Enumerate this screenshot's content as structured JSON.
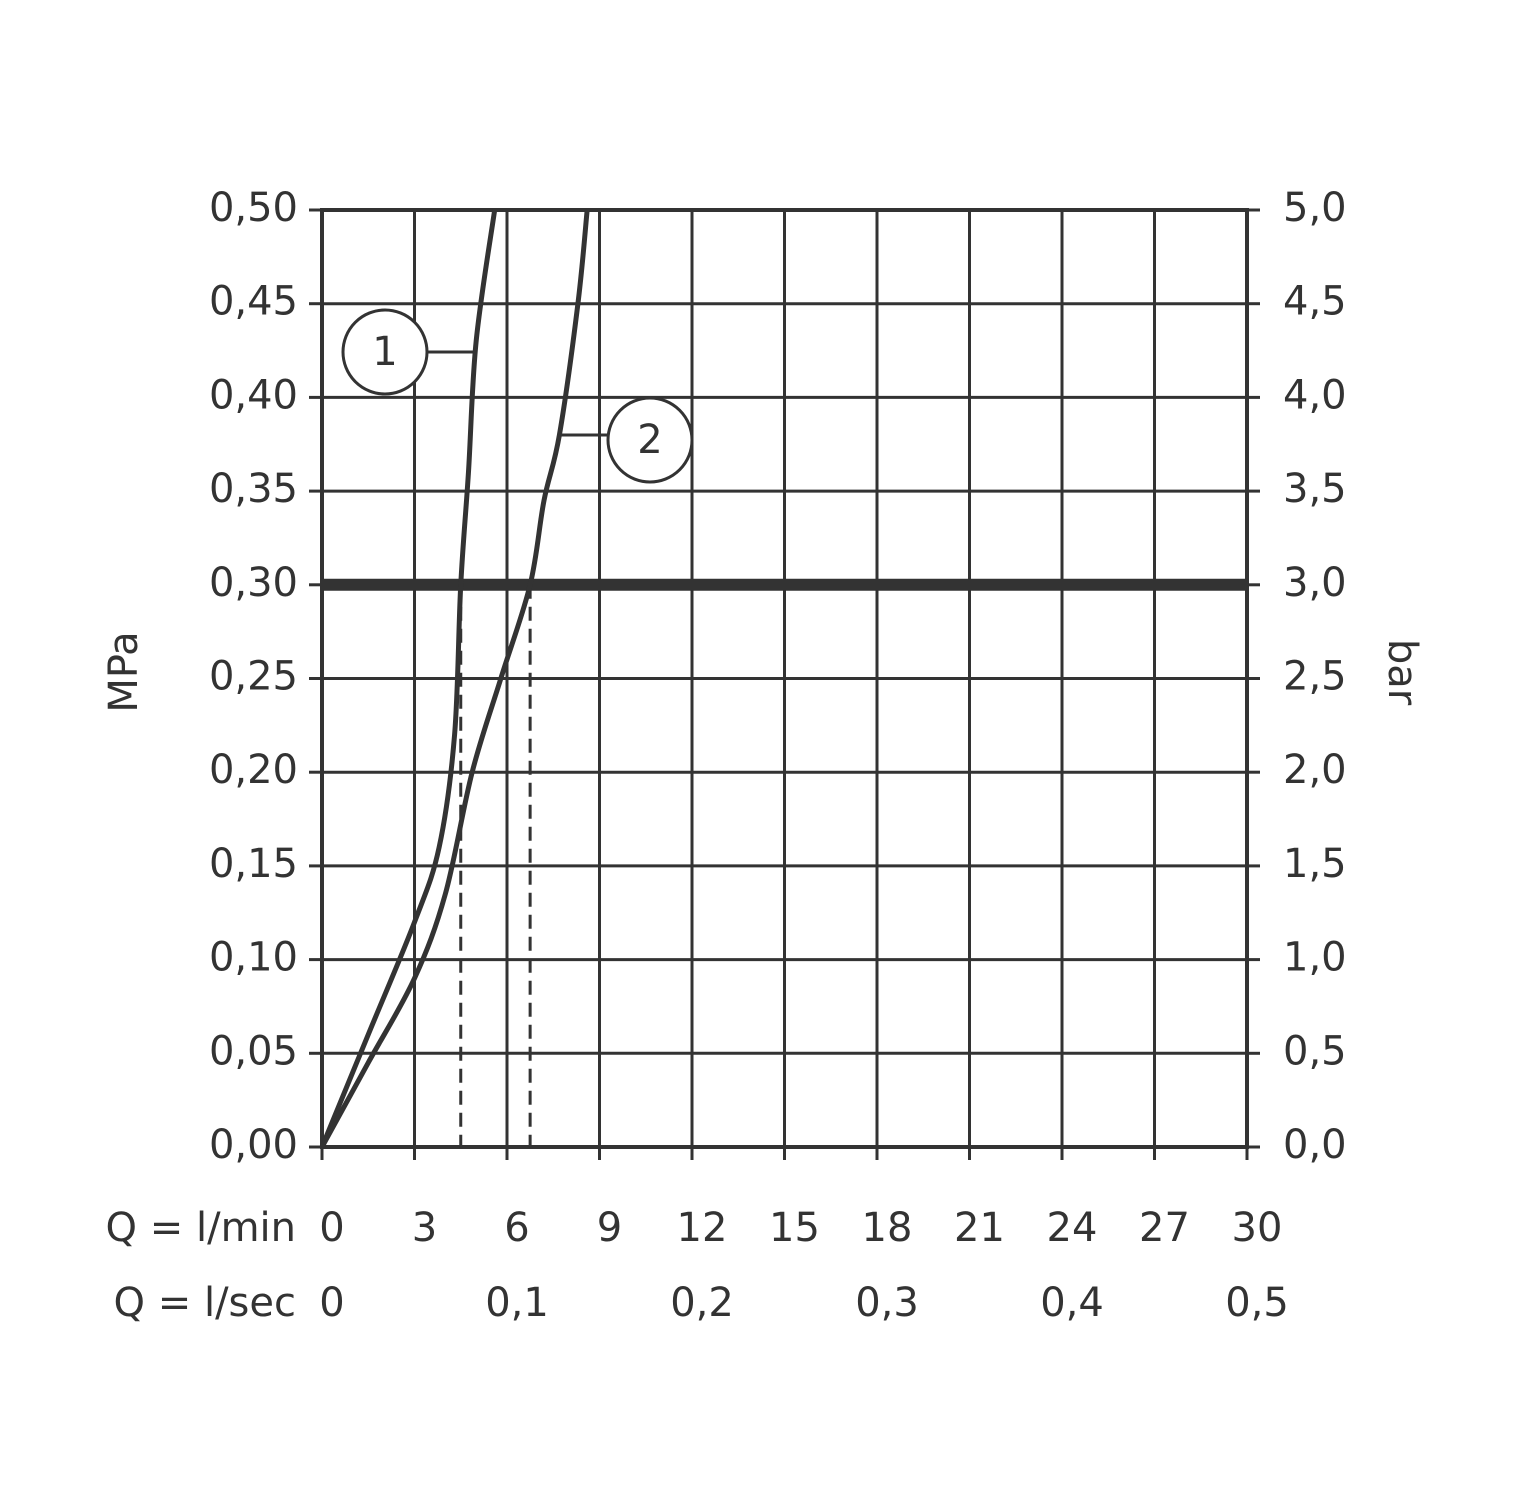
{
  "chart_data": {
    "type": "line",
    "xlabel": "Q = l/min",
    "x2label": "Q = l/sec",
    "ylabel": "MPa",
    "y2label": "bar",
    "xlim": [
      0,
      30
    ],
    "xticks": [
      0,
      3,
      6,
      9,
      12,
      15,
      18,
      21,
      24,
      27,
      30
    ],
    "x2lim": [
      0,
      0.5
    ],
    "x2ticks": [
      0,
      {
        "value": 0.1,
        "label": "0,1"
      },
      {
        "value": 0.2,
        "label": "0,2"
      },
      {
        "value": 0.3,
        "label": "0,3"
      },
      {
        "value": 0.4,
        "label": "0,4"
      },
      {
        "value": 0.5,
        "label": "0,5"
      }
    ],
    "ylim": [
      0,
      0.5
    ],
    "yticks": [
      {
        "value": 0,
        "label": "0,00"
      },
      {
        "value": 0.05,
        "label": "0,05"
      },
      {
        "value": 0.1,
        "label": "0,10"
      },
      {
        "value": 0.15,
        "label": "0,15"
      },
      {
        "value": 0.2,
        "label": "0,20"
      },
      {
        "value": 0.25,
        "label": "0,25"
      },
      {
        "value": 0.3,
        "label": "0,30"
      },
      {
        "value": 0.35,
        "label": "0,35"
      },
      {
        "value": 0.4,
        "label": "0,40"
      },
      {
        "value": 0.45,
        "label": "0,45"
      },
      {
        "value": 0.5,
        "label": "0,50"
      }
    ],
    "y2lim": [
      0,
      5
    ],
    "y2ticks": [
      {
        "value": 0,
        "label": "0,0"
      },
      {
        "value": 0.5,
        "label": "0,5"
      },
      {
        "value": 1,
        "label": "1,0"
      },
      {
        "value": 1.5,
        "label": "1,5"
      },
      {
        "value": 2,
        "label": "2,0"
      },
      {
        "value": 2.5,
        "label": "2,5"
      },
      {
        "value": 3,
        "label": "3,0"
      },
      {
        "value": 3.5,
        "label": "3,5"
      },
      {
        "value": 4,
        "label": "4,0"
      },
      {
        "value": 4.5,
        "label": "4,5"
      },
      {
        "value": 5,
        "label": "5,0"
      }
    ],
    "grid": true,
    "reference_y": 0.3,
    "dashed_x": [
      4.5,
      6.75
    ],
    "series": [
      {
        "name": "1",
        "color": "#333333",
        "x": [
          0,
          1.5,
          3,
          3.8,
          4.3,
          4.5,
          4.75,
          5.0,
          5.6
        ],
        "values": [
          0,
          0.06,
          0.12,
          0.16,
          0.22,
          0.3,
          0.36,
          0.43,
          0.5
        ]
      },
      {
        "name": "2",
        "color": "#333333",
        "x": [
          0,
          1.5,
          3,
          4,
          4.87,
          5.8,
          6.75,
          7.2,
          7.7,
          8.3,
          8.6
        ],
        "values": [
          0,
          0.045,
          0.09,
          0.135,
          0.2,
          0.25,
          0.3,
          0.345,
          0.38,
          0.45,
          0.5
        ]
      }
    ]
  }
}
